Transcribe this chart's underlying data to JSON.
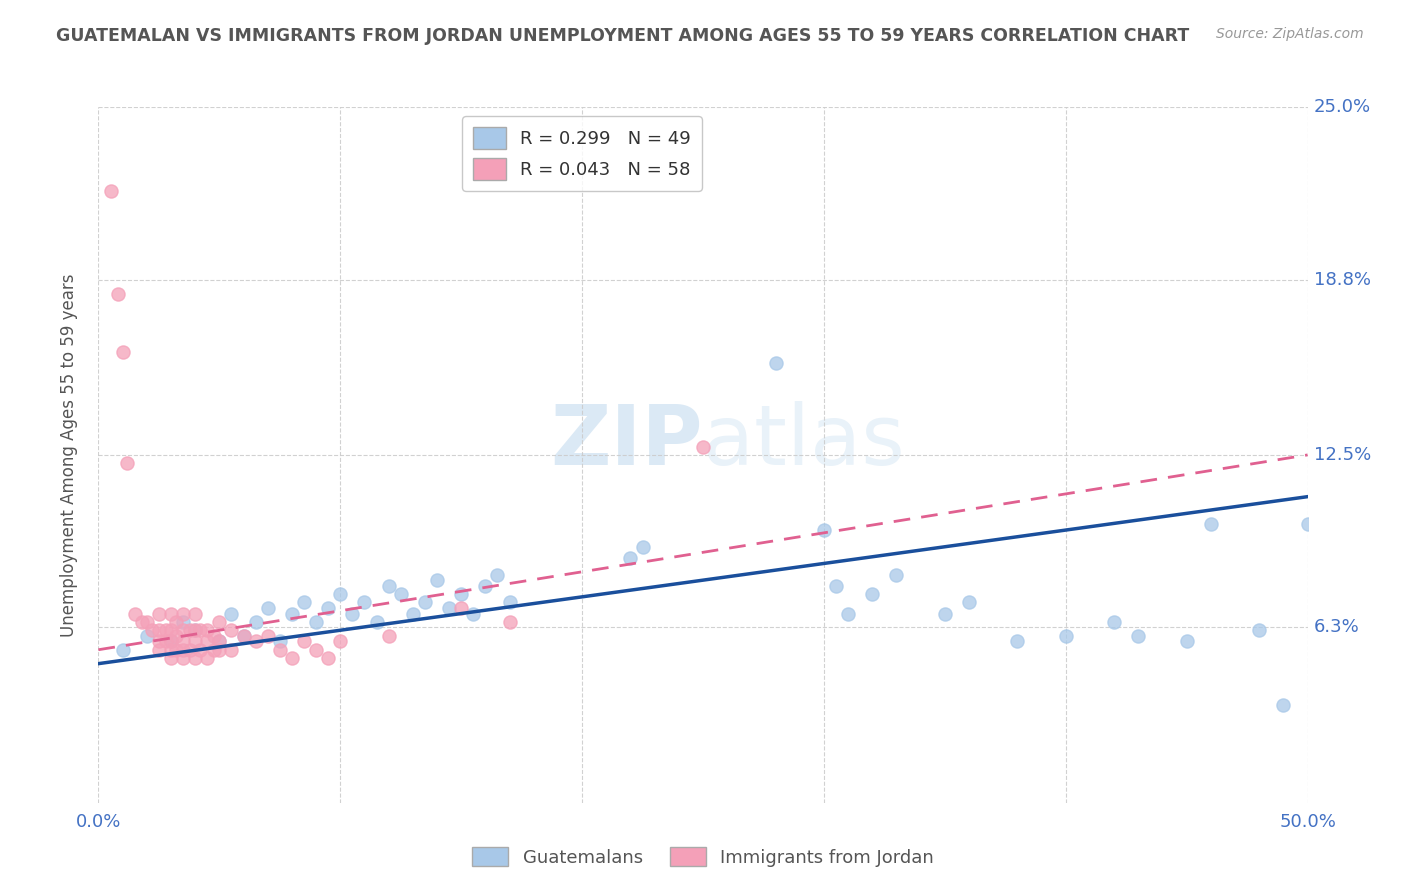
{
  "title": "GUATEMALAN VS IMMIGRANTS FROM JORDAN UNEMPLOYMENT AMONG AGES 55 TO 59 YEARS CORRELATION CHART",
  "source_text": "Source: ZipAtlas.com",
  "ylabel": "Unemployment Among Ages 55 to 59 years",
  "xlim": [
    0.0,
    0.5
  ],
  "ylim": [
    0.0,
    0.25
  ],
  "ytick_labels_right": [
    "6.3%",
    "12.5%",
    "18.8%",
    "25.0%"
  ],
  "ytick_vals_right": [
    0.063,
    0.125,
    0.188,
    0.25
  ],
  "blue_R": 0.299,
  "blue_N": 49,
  "pink_R": 0.043,
  "pink_N": 58,
  "blue_color": "#a8c8e8",
  "pink_color": "#f4a0b8",
  "blue_line_color": "#1a4f9c",
  "pink_line_color": "#e06090",
  "background_color": "#ffffff",
  "grid_color": "#cccccc",
  "watermark_text": "ZIPatlas",
  "title_color": "#555555",
  "axis_label_color": "#555555",
  "tick_label_color": "#4472c4",
  "blue_scatter": [
    [
      0.01,
      0.055
    ],
    [
      0.02,
      0.06
    ],
    [
      0.03,
      0.058
    ],
    [
      0.035,
      0.065
    ],
    [
      0.04,
      0.062
    ],
    [
      0.05,
      0.058
    ],
    [
      0.055,
      0.068
    ],
    [
      0.06,
      0.06
    ],
    [
      0.065,
      0.065
    ],
    [
      0.07,
      0.07
    ],
    [
      0.075,
      0.058
    ],
    [
      0.08,
      0.068
    ],
    [
      0.085,
      0.072
    ],
    [
      0.09,
      0.065
    ],
    [
      0.095,
      0.07
    ],
    [
      0.1,
      0.075
    ],
    [
      0.105,
      0.068
    ],
    [
      0.11,
      0.072
    ],
    [
      0.115,
      0.065
    ],
    [
      0.12,
      0.078
    ],
    [
      0.125,
      0.075
    ],
    [
      0.13,
      0.068
    ],
    [
      0.135,
      0.072
    ],
    [
      0.14,
      0.08
    ],
    [
      0.145,
      0.07
    ],
    [
      0.15,
      0.075
    ],
    [
      0.155,
      0.068
    ],
    [
      0.16,
      0.078
    ],
    [
      0.165,
      0.082
    ],
    [
      0.17,
      0.072
    ],
    [
      0.22,
      0.088
    ],
    [
      0.225,
      0.092
    ],
    [
      0.28,
      0.158
    ],
    [
      0.3,
      0.098
    ],
    [
      0.305,
      0.078
    ],
    [
      0.31,
      0.068
    ],
    [
      0.32,
      0.075
    ],
    [
      0.33,
      0.082
    ],
    [
      0.35,
      0.068
    ],
    [
      0.36,
      0.072
    ],
    [
      0.38,
      0.058
    ],
    [
      0.4,
      0.06
    ],
    [
      0.42,
      0.065
    ],
    [
      0.43,
      0.06
    ],
    [
      0.45,
      0.058
    ],
    [
      0.46,
      0.1
    ],
    [
      0.48,
      0.062
    ],
    [
      0.49,
      0.035
    ],
    [
      0.5,
      0.1
    ]
  ],
  "pink_scatter": [
    [
      0.005,
      0.22
    ],
    [
      0.008,
      0.183
    ],
    [
      0.01,
      0.162
    ],
    [
      0.012,
      0.122
    ],
    [
      0.015,
      0.068
    ],
    [
      0.018,
      0.065
    ],
    [
      0.02,
      0.065
    ],
    [
      0.022,
      0.062
    ],
    [
      0.025,
      0.068
    ],
    [
      0.025,
      0.062
    ],
    [
      0.025,
      0.058
    ],
    [
      0.025,
      0.055
    ],
    [
      0.028,
      0.062
    ],
    [
      0.028,
      0.058
    ],
    [
      0.03,
      0.068
    ],
    [
      0.03,
      0.062
    ],
    [
      0.03,
      0.058
    ],
    [
      0.03,
      0.055
    ],
    [
      0.03,
      0.052
    ],
    [
      0.032,
      0.065
    ],
    [
      0.032,
      0.06
    ],
    [
      0.032,
      0.055
    ],
    [
      0.035,
      0.068
    ],
    [
      0.035,
      0.062
    ],
    [
      0.035,
      0.058
    ],
    [
      0.035,
      0.055
    ],
    [
      0.035,
      0.052
    ],
    [
      0.038,
      0.062
    ],
    [
      0.038,
      0.055
    ],
    [
      0.04,
      0.068
    ],
    [
      0.04,
      0.062
    ],
    [
      0.04,
      0.058
    ],
    [
      0.04,
      0.052
    ],
    [
      0.042,
      0.062
    ],
    [
      0.042,
      0.055
    ],
    [
      0.045,
      0.062
    ],
    [
      0.045,
      0.058
    ],
    [
      0.045,
      0.052
    ],
    [
      0.048,
      0.06
    ],
    [
      0.048,
      0.055
    ],
    [
      0.05,
      0.065
    ],
    [
      0.05,
      0.058
    ],
    [
      0.05,
      0.055
    ],
    [
      0.055,
      0.062
    ],
    [
      0.055,
      0.055
    ],
    [
      0.06,
      0.06
    ],
    [
      0.065,
      0.058
    ],
    [
      0.07,
      0.06
    ],
    [
      0.075,
      0.055
    ],
    [
      0.08,
      0.052
    ],
    [
      0.085,
      0.058
    ],
    [
      0.09,
      0.055
    ],
    [
      0.095,
      0.052
    ],
    [
      0.1,
      0.058
    ],
    [
      0.12,
      0.06
    ],
    [
      0.15,
      0.07
    ],
    [
      0.17,
      0.065
    ],
    [
      0.25,
      0.128
    ]
  ]
}
